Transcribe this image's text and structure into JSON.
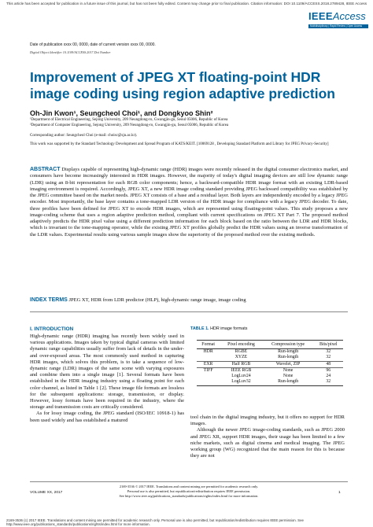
{
  "header": {
    "notice": "This article has been accepted for publication in a future issue of this journal, but has not been fully edited. Content may change prior to final publication. Citation information: DOI 10.1109/ACCESS.2018.2789428, IEEE Access",
    "logo_ieee": "IEEE",
    "logo_access": "Access",
    "logo_tagline": "Multidisciplinary | Rapid Review | Open Access Journal"
  },
  "meta": {
    "dates": "Date of publication xxxx 00, 0000, date of current version xxxx 00, 0000.",
    "doi": "Digital Object Identifier 10.1109/ACCESS.2017.Doi Number"
  },
  "paper": {
    "title": "Improvement of JPEG XT floating-point HDR image coding using region adaptive prediction",
    "authors": "Oh-Jin Kwon¹, Seungcheol Choi¹, and Dongkyoo Shin²",
    "affiliation1": "¹Department of Electrical Engineering, Sejong University, 209 Neungdong-ro, Gwangjin-gu, Seoul 05006, Republic of Korea",
    "affiliation2": "²Department of Computer Engineering, Sejong University, 209 Neungdong-ro, Gwangjin-gu, Seoul 05006, Republic of Korea",
    "corresponding": "Corresponding author: Seungcheol Choi (e-mail: choisc@sju.ac.kr).",
    "funding": "This work was supported by the Standard Technology Development and Spread Program of KATS/KEIT. [10069128 , Developing Standard Platform and Library for JPEG Privacy-Security]",
    "abstract_label": "ABSTRACT",
    "abstract": "Displays capable of representing high-dynamic range (HDR) images were recently released in the digital consumer electronics market, and consumers have become increasingly interested in HDR images. However, the majority of today's digital imaging devices are still low dynamic range (LDR) using an 8-bit representation for each RGB color components; hence, a backward-compatible HDR image format with an existing LDR-based imaging environment is required. Accordingly, JPEG XT, a new HDR image coding standard providing JPEG backward compatibility was established by the JPEG committee based on the market needs. JPEG XT consists of a base and a residual layer. Both layers are independently encoded by a legacy JPEG encoder. Most importantly, the base layer contains a tone-mapped LDR version of the HDR image for compliance with a legacy JPEG decoder. To date, three profiles have been defined for JPEG XT to encode HDR images, which are represented using floating-point values. This study proposes a new image-coding scheme that uses a region adaptive prediction method, compliant with current specifications on JPEG XT Part 7. The proposed method adaptively predicts the HDR pixel value using a different prediction information for each block based on the ratio between the LDR and HDR blocks, which is invariant to the tone-mapping operator, while the existing JPEG XT profiles globally predict the HDR values using an inverse transformation of the LDR values. Experimental results using various sample images show the superiority of the proposed method over the existing methods.",
    "index_label": "INDEX TERMS",
    "index_terms": "JPEG XT, HDR from LDR predictor (HLP), high-dynamic range image, image coding"
  },
  "section1": {
    "heading": "I.  INTRODUCTION",
    "para1": "High-dynamic range (HDR) imaging has recently been widely used in various applications. Images taken by typical digital cameras with limited dynamic range capabilities usually suffer from lack of details in the under- and over-exposed areas. The most commonly used method in capturing HDR images, which solves this problem, is to take a sequence of low-dynamic range (LDR) images of the same scene with varying exposures and combine them into a single image [1]. Several formats have been established in the HDR imaging industry using a floating point for each color channel, as listed in Table 1 [2]. These image file formats are lossless for the subsequent applications: storage, transmission, or display. However, lossy formats have been required in the industry, where the storage and transmission costs are critically considered.",
    "para2": "As for lossy image coding, the JPEG standard (ISO/IEC 10918-1) has been used widely and has established a matured",
    "col2_para1": "tool chain in the digital imaging industry, but it offers no support for HDR images.",
    "col2_para2": "Although the newer JPEG image-coding standards, such as JPEG 2000 and JPEG XR, support HDR images, their usage has been limited to a few niche markets, such as digital cinema and medical imaging. The JPEG working group (WG) recognized that the main reason for this is because they are not"
  },
  "table1": {
    "caption_label": "TABLE 1.",
    "caption": "HDR image formats",
    "columns": [
      "Format",
      "Pixel encoding",
      "Compression type",
      "Bits/pixel"
    ],
    "rows": [
      [
        "HDR",
        "RGBE",
        "Run-length",
        "32"
      ],
      [
        "",
        "XYZE",
        "Run-length",
        "32"
      ],
      [
        "EXR",
        "Half RGB",
        "Wavelet, ZIP",
        "48"
      ],
      [
        "TIFF",
        "IEEE RGB",
        "None",
        "96"
      ],
      [
        "",
        "LogLuv24",
        "None",
        "24"
      ],
      [
        "",
        "LogLuv32",
        "Run-length",
        "32"
      ]
    ]
  },
  "footer": {
    "volume": "VOLUME XX, 2017",
    "page": "1",
    "copyright": "2169-3536 © 2017 IEEE. Translations and content mining are permitted for academic research only.",
    "personal_use": "Personal use is also permitted, but republication/redistribution requires IEEE permission.",
    "see_url": "See http://www.ieee.org/publications_standards/publications/rights/index.html for more information.",
    "bottom_notice": "2169-3536 (c) 2017 IEEE. Translations and content mining are permitted for academic research only. Personal use is also permitted, but republication/redistribution requires IEEE permission. See http://www.ieee.org/publications_standards/publications/rights/index.html for more information."
  }
}
